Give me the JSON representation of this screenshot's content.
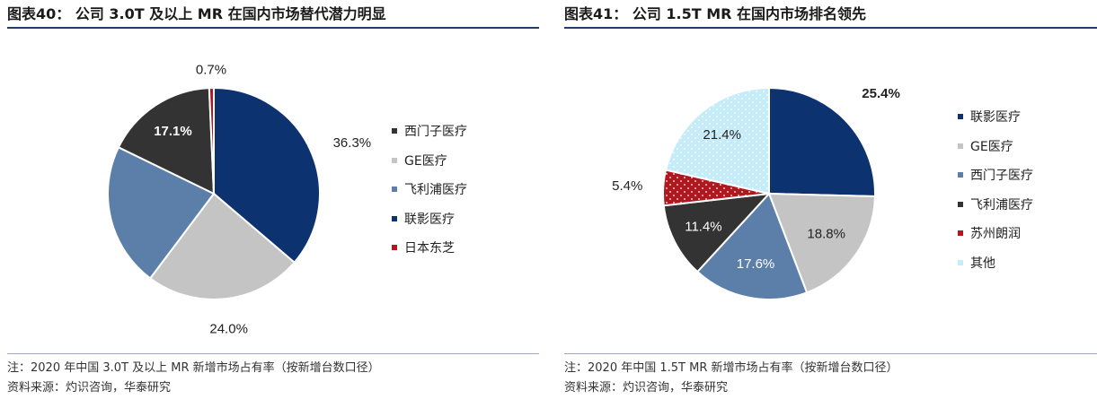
{
  "chart_data": [
    {
      "type": "pie",
      "title": "图表40： 公司 3.0T 及以上 MR 在国内市场替代潜力明显",
      "slices": [
        {
          "name": "联影医疗",
          "value": 36.3,
          "label": "36.3%",
          "color": "#0d3270"
        },
        {
          "name": "GE医疗",
          "value": 24.0,
          "label": "24.0%",
          "color": "#c4c4c4"
        },
        {
          "name": "飞利浦医疗",
          "value": 22.0,
          "label": "22.0%",
          "color": "#5b7fa8"
        },
        {
          "name": "西门子医疗",
          "value": 17.1,
          "label": "17.1%",
          "color": "#333333"
        },
        {
          "name": "日本东芝",
          "value": 0.7,
          "label": "0.7%",
          "color": "#b01820"
        }
      ],
      "legend": [
        "西门子医疗",
        "GE医疗",
        "飞利浦医疗",
        "联影医疗",
        "日本东芝"
      ],
      "legend_position": "right",
      "note": "注：2020 年中国 3.0T 及以上 MR 新增市场占有率（按新增台数口径）",
      "source": "资料来源：灼识咨询，华泰研究"
    },
    {
      "type": "pie",
      "title": "图表41： 公司 1.5T MR 在国内市场排名领先",
      "slices": [
        {
          "name": "联影医疗",
          "value": 25.4,
          "label": "25.4%",
          "color": "#0d3270"
        },
        {
          "name": "GE医疗",
          "value": 18.8,
          "label": "18.8%",
          "color": "#c4c4c4"
        },
        {
          "name": "西门子医疗",
          "value": 17.6,
          "label": "17.6%",
          "color": "#5b7fa8"
        },
        {
          "name": "飞利浦医疗",
          "value": 11.4,
          "label": "11.4%",
          "color": "#333333"
        },
        {
          "name": "苏州朗润",
          "value": 5.4,
          "label": "5.4%",
          "color": "#b01820"
        },
        {
          "name": "其他",
          "value": 21.4,
          "label": "21.4%",
          "color": "#c6ecf9"
        }
      ],
      "legend": [
        "联影医疗",
        "GE医疗",
        "西门子医疗",
        "飞利浦医疗",
        "苏州朗润",
        "其他"
      ],
      "legend_position": "right",
      "note": "注：2020 年中国 1.5T MR 新增市场占有率（按新增台数口径）",
      "source": "资料来源：灼识咨询，华泰研究"
    }
  ]
}
